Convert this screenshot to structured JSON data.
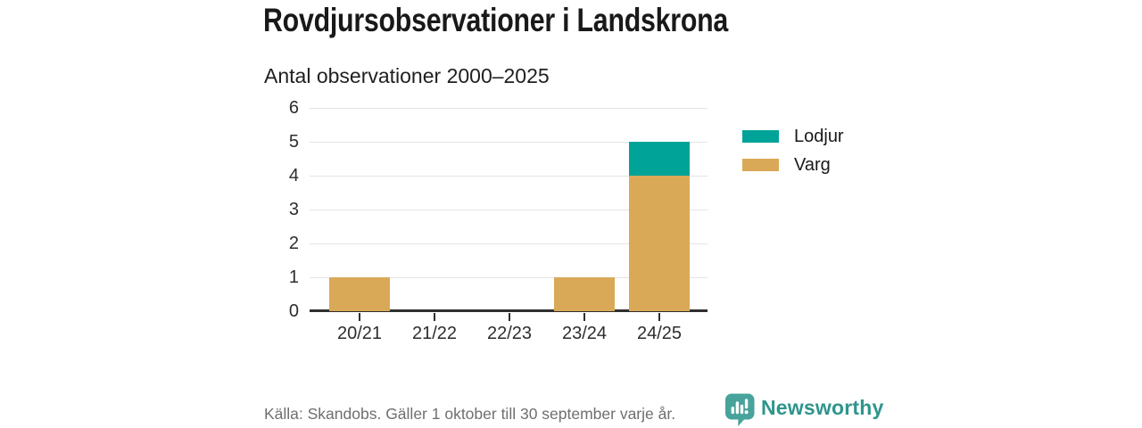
{
  "title": "Rovdjursobservationer i Landskrona",
  "subtitle": "Antal observationer 2000–2025",
  "chart_data": {
    "type": "bar",
    "stacked": true,
    "categories": [
      "20/21",
      "21/22",
      "22/23",
      "23/24",
      "24/25"
    ],
    "series": [
      {
        "name": "Lodjur",
        "color": "#00a398",
        "values": [
          0,
          0,
          0,
          0,
          1
        ]
      },
      {
        "name": "Varg",
        "color": "#d9a957",
        "values": [
          1,
          0,
          0,
          1,
          4
        ]
      }
    ],
    "title": "Rovdjursobservationer i Landskrona",
    "subtitle": "Antal observationer 2000–2025",
    "xlabel": "",
    "ylabel": "",
    "ylim": [
      0,
      6
    ],
    "yticks": [
      0,
      1,
      2,
      3,
      4,
      5,
      6
    ],
    "grid": true,
    "legend_position": "right"
  },
  "footer": {
    "source": "Källa: Skandobs. Gäller 1 oktober till 30 september varje år.",
    "brand": "Newsworthy"
  },
  "colors": {
    "lodjur_teal": "#00a398",
    "varg_tan": "#d9a957",
    "brand_teal": "#2e958c",
    "brand_bubble": "#47a39b",
    "axis": "#2f2f2f",
    "gridline": "#e4e4e4",
    "title_text": "#191919",
    "source_text": "#6f6f6f",
    "background": "#ffffff"
  }
}
